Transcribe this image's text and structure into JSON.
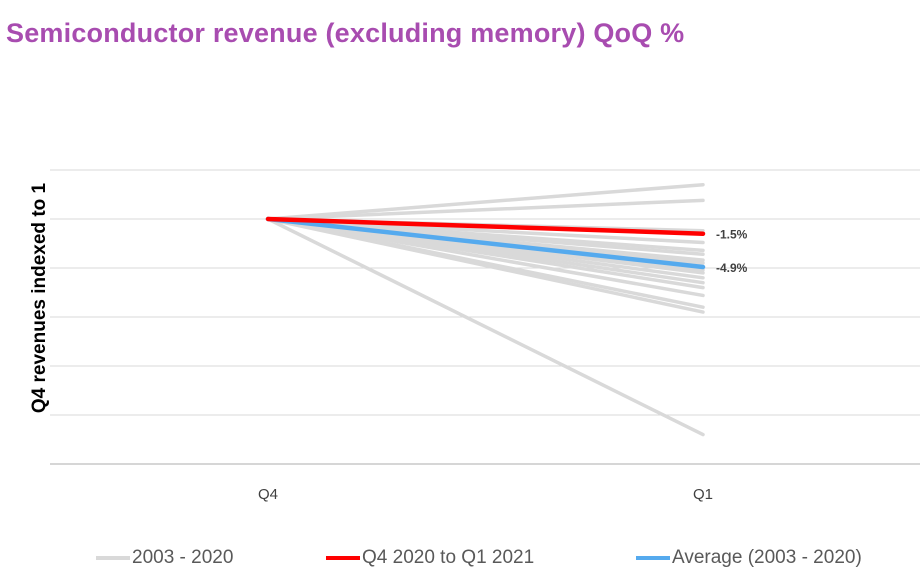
{
  "chart_data": {
    "type": "line",
    "title": "Semiconductor revenue (excluding memory) QoQ %",
    "ylabel": "Q4 revenues indexed to 1",
    "xlabel": "",
    "categories": [
      "Q4",
      "Q1"
    ],
    "ylim": [
      0.75,
      1.05
    ],
    "grid": true,
    "legend_position": "bottom",
    "background_series": {
      "name": "2003 - 2020",
      "color": "#d9d9d9",
      "q1_values": [
        1.035,
        1.019,
        0.988,
        0.985,
        0.976,
        0.968,
        0.964,
        0.958,
        0.955,
        0.951,
        0.948,
        0.945,
        0.94,
        0.935,
        0.93,
        0.922,
        0.91,
        0.905,
        0.78
      ]
    },
    "series": [
      {
        "name": "Q4 2020 to Q1 2021",
        "color": "#ff0000",
        "values": [
          1.0,
          0.985
        ],
        "label": "-1.5%"
      },
      {
        "name": "Average (2003 - 2020)",
        "color": "#55aaee",
        "values": [
          1.0,
          0.951
        ],
        "label": "-4.9%"
      }
    ]
  }
}
